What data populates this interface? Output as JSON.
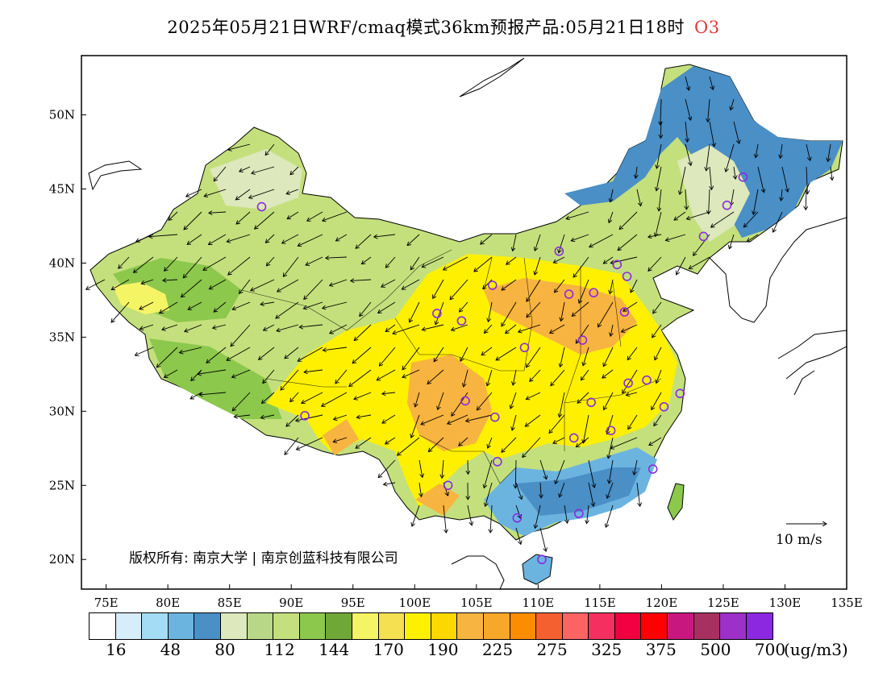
{
  "title": {
    "text": "2025年05月21日WRF/cmaq模式36km预报产品:05月21日18时",
    "species": "O3",
    "species_color": "#e03a3a"
  },
  "map": {
    "lat_labels": [
      "50N",
      "45N",
      "40N",
      "35N",
      "30N",
      "25N",
      "20N"
    ],
    "lon_labels": [
      "75E",
      "80E",
      "85E",
      "90E",
      "95E",
      "100E",
      "105E",
      "110E",
      "115E",
      "120E",
      "125E",
      "130E",
      "135E"
    ],
    "extent": {
      "lon_min": 73,
      "lon_max": 135,
      "lat_min": 18,
      "lat_max": 54
    },
    "wind_reference": "10 m/s",
    "copyright": "版权所有: 南京大学 | 南京创蓝科技有限公司",
    "station_marker_color": "#8a2be2",
    "stations": [
      {
        "lon": 87.6,
        "lat": 43.8
      },
      {
        "lon": 91.1,
        "lat": 29.7
      },
      {
        "lon": 101.8,
        "lat": 36.6
      },
      {
        "lon": 103.8,
        "lat": 36.1
      },
      {
        "lon": 106.3,
        "lat": 38.5
      },
      {
        "lon": 111.7,
        "lat": 40.8
      },
      {
        "lon": 112.5,
        "lat": 37.9
      },
      {
        "lon": 114.5,
        "lat": 38.0
      },
      {
        "lon": 116.4,
        "lat": 39.9
      },
      {
        "lon": 117.2,
        "lat": 39.1
      },
      {
        "lon": 108.9,
        "lat": 34.3
      },
      {
        "lon": 113.6,
        "lat": 34.8
      },
      {
        "lon": 117.0,
        "lat": 36.7
      },
      {
        "lon": 104.1,
        "lat": 30.7
      },
      {
        "lon": 106.5,
        "lat": 29.6
      },
      {
        "lon": 114.3,
        "lat": 30.6
      },
      {
        "lon": 117.3,
        "lat": 31.9
      },
      {
        "lon": 118.8,
        "lat": 32.1
      },
      {
        "lon": 120.2,
        "lat": 30.3
      },
      {
        "lon": 121.5,
        "lat": 31.2
      },
      {
        "lon": 112.9,
        "lat": 28.2
      },
      {
        "lon": 115.9,
        "lat": 28.7
      },
      {
        "lon": 119.3,
        "lat": 26.1
      },
      {
        "lon": 106.7,
        "lat": 26.6
      },
      {
        "lon": 102.7,
        "lat": 25.0
      },
      {
        "lon": 108.3,
        "lat": 22.8
      },
      {
        "lon": 113.3,
        "lat": 23.1
      },
      {
        "lon": 110.3,
        "lat": 20.0
      },
      {
        "lon": 123.4,
        "lat": 41.8
      },
      {
        "lon": 125.3,
        "lat": 43.9
      },
      {
        "lon": 126.6,
        "lat": 45.8
      }
    ]
  },
  "colorbar": {
    "colors": [
      "#ffffff",
      "#d6eefa",
      "#a4dcf6",
      "#6cb4e0",
      "#4a8fc6",
      "#dde8bc",
      "#b8d888",
      "#c4e07c",
      "#8cc84c",
      "#70a838",
      "#f4f464",
      "#f4e050",
      "#fff000",
      "#fcd800",
      "#f8b440",
      "#f8a828",
      "#fc8c00",
      "#f46030",
      "#fc6464",
      "#f43060",
      "#f00040",
      "#ff0000",
      "#c81880",
      "#a83060",
      "#9c30c8",
      "#8c28e0"
    ],
    "labels": [
      "16",
      "48",
      "80",
      "112",
      "144",
      "170",
      "190",
      "225",
      "275",
      "325",
      "375",
      "500",
      "700"
    ],
    "unit": "(ug/m3)"
  }
}
